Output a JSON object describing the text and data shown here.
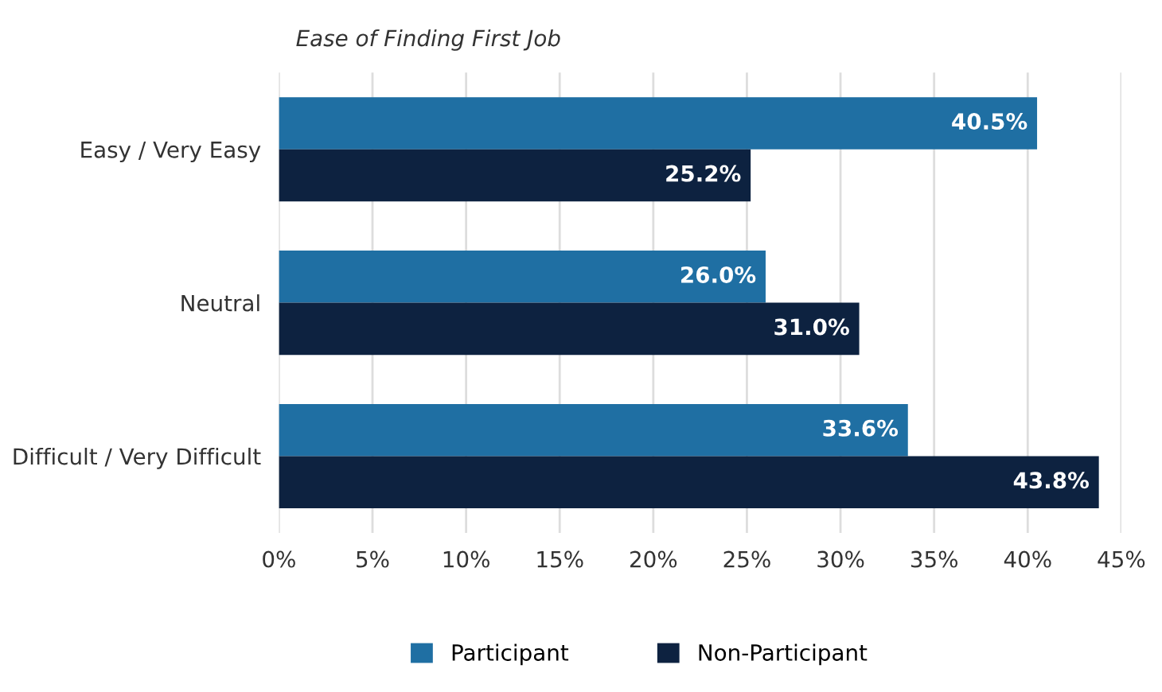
{
  "chart_data": {
    "type": "bar",
    "orientation": "horizontal",
    "title": "Ease of Finding First Job",
    "categories": [
      "Easy / Very Easy",
      "Neutral",
      "Difficult / Very Difficult"
    ],
    "series": [
      {
        "name": "Participant",
        "color": "#1f6fa3",
        "values": [
          40.5,
          26.0,
          33.6
        ],
        "value_labels": [
          "40.5%",
          "26.0%",
          "33.6%"
        ]
      },
      {
        "name": "Non-Participant",
        "color": "#0d2240",
        "values": [
          25.2,
          31.0,
          43.8
        ],
        "value_labels": [
          "25.2%",
          "31.0%",
          "43.8%"
        ]
      }
    ],
    "xlim": [
      0,
      45
    ],
    "xticks": [
      {
        "value": 0,
        "label": "0%"
      },
      {
        "value": 5,
        "label": "5%"
      },
      {
        "value": 10,
        "label": "10%"
      },
      {
        "value": 15,
        "label": "15%"
      },
      {
        "value": 20,
        "label": "20%"
      },
      {
        "value": 25,
        "label": "25%"
      },
      {
        "value": 30,
        "label": "30%"
      },
      {
        "value": 35,
        "label": "35%"
      },
      {
        "value": 40,
        "label": "40%"
      },
      {
        "value": 45,
        "label": "45%"
      }
    ],
    "grid": "x",
    "legend": "bottom"
  }
}
